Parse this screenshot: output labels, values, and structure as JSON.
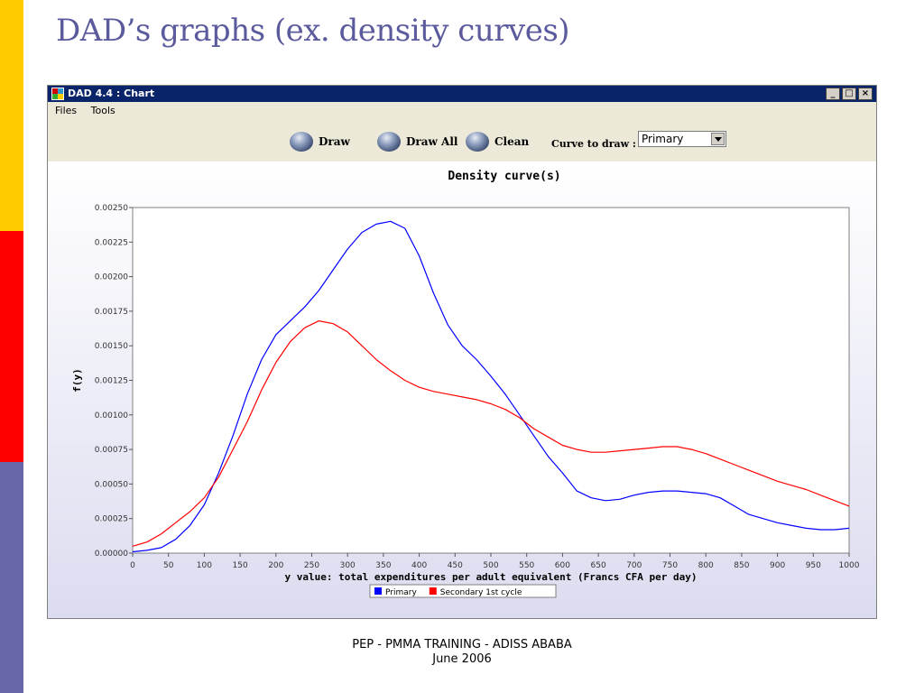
{
  "slide": {
    "title": "DAD’s graphs  (ex. density curves)",
    "footer_line1": "PEP - PMMA TRAINING - ADISS ABABA",
    "footer_line2": "June 2006"
  },
  "window": {
    "title": "DAD 4.4 : Chart",
    "minimize": "_",
    "maximize": "□",
    "close": "×"
  },
  "menu": {
    "files": "Files",
    "tools": "Tools"
  },
  "toolbar": {
    "draw": "Draw",
    "draw_all": "Draw All",
    "clean": "Clean",
    "curve_label": "Curve to draw :",
    "curve_selected": "Primary"
  },
  "chart_data": {
    "type": "line",
    "title": "Density curve(s)",
    "xlabel": "y value: total expenditures per adult equivalent  (Francs CFA per day)",
    "ylabel": "f(y)",
    "xlim": [
      0,
      1000
    ],
    "ylim": [
      0,
      0.0025
    ],
    "xticks": [
      0,
      50,
      100,
      150,
      200,
      250,
      300,
      350,
      400,
      450,
      500,
      550,
      600,
      650,
      700,
      750,
      800,
      850,
      900,
      950,
      1000
    ],
    "yticks": [
      "0.00000",
      "0.00025",
      "0.00050",
      "0.00075",
      "0.00100",
      "0.00125",
      "0.00150",
      "0.00175",
      "0.00200",
      "0.00225",
      "0.00250"
    ],
    "grid": false,
    "legend_position": "bottom-center",
    "series": [
      {
        "name": "Primary",
        "color": "#0000ff",
        "points": [
          [
            0,
            1e-05
          ],
          [
            20,
            2e-05
          ],
          [
            40,
            4e-05
          ],
          [
            60,
            0.0001
          ],
          [
            80,
            0.0002
          ],
          [
            100,
            0.00035
          ],
          [
            120,
            0.00058
          ],
          [
            140,
            0.00085
          ],
          [
            160,
            0.00115
          ],
          [
            180,
            0.0014
          ],
          [
            200,
            0.00158
          ],
          [
            220,
            0.00168
          ],
          [
            240,
            0.00178
          ],
          [
            260,
            0.0019
          ],
          [
            280,
            0.00205
          ],
          [
            300,
            0.0022
          ],
          [
            320,
            0.00232
          ],
          [
            340,
            0.00238
          ],
          [
            360,
            0.0024
          ],
          [
            380,
            0.00235
          ],
          [
            400,
            0.00215
          ],
          [
            420,
            0.00188
          ],
          [
            440,
            0.00165
          ],
          [
            460,
            0.0015
          ],
          [
            480,
            0.0014
          ],
          [
            500,
            0.00128
          ],
          [
            520,
            0.00115
          ],
          [
            540,
            0.001
          ],
          [
            560,
            0.00085
          ],
          [
            580,
            0.0007
          ],
          [
            600,
            0.00058
          ],
          [
            620,
            0.00045
          ],
          [
            640,
            0.0004
          ],
          [
            660,
            0.00038
          ],
          [
            680,
            0.00039
          ],
          [
            700,
            0.00042
          ],
          [
            720,
            0.00044
          ],
          [
            740,
            0.00045
          ],
          [
            760,
            0.00045
          ],
          [
            780,
            0.00044
          ],
          [
            800,
            0.00043
          ],
          [
            820,
            0.0004
          ],
          [
            840,
            0.00034
          ],
          [
            860,
            0.00028
          ],
          [
            880,
            0.00025
          ],
          [
            900,
            0.00022
          ],
          [
            920,
            0.0002
          ],
          [
            940,
            0.00018
          ],
          [
            960,
            0.00017
          ],
          [
            980,
            0.00017
          ],
          [
            1000,
            0.00018
          ]
        ]
      },
      {
        "name": "Secondary 1st cycle",
        "color": "#ff0000",
        "points": [
          [
            0,
            5e-05
          ],
          [
            20,
            8e-05
          ],
          [
            40,
            0.00014
          ],
          [
            60,
            0.00022
          ],
          [
            80,
            0.0003
          ],
          [
            100,
            0.0004
          ],
          [
            120,
            0.00055
          ],
          [
            140,
            0.00075
          ],
          [
            160,
            0.00095
          ],
          [
            180,
            0.00118
          ],
          [
            200,
            0.00138
          ],
          [
            220,
            0.00153
          ],
          [
            240,
            0.00163
          ],
          [
            260,
            0.00168
          ],
          [
            280,
            0.00166
          ],
          [
            300,
            0.0016
          ],
          [
            320,
            0.0015
          ],
          [
            340,
            0.0014
          ],
          [
            360,
            0.00132
          ],
          [
            380,
            0.00125
          ],
          [
            400,
            0.0012
          ],
          [
            420,
            0.00117
          ],
          [
            440,
            0.00115
          ],
          [
            460,
            0.00113
          ],
          [
            480,
            0.00111
          ],
          [
            500,
            0.00108
          ],
          [
            520,
            0.00104
          ],
          [
            540,
            0.00098
          ],
          [
            560,
            0.0009
          ],
          [
            580,
            0.00084
          ],
          [
            600,
            0.00078
          ],
          [
            620,
            0.00075
          ],
          [
            640,
            0.00073
          ],
          [
            660,
            0.00073
          ],
          [
            680,
            0.00074
          ],
          [
            700,
            0.00075
          ],
          [
            720,
            0.00076
          ],
          [
            740,
            0.00077
          ],
          [
            760,
            0.00077
          ],
          [
            780,
            0.00075
          ],
          [
            800,
            0.00072
          ],
          [
            820,
            0.00068
          ],
          [
            840,
            0.00064
          ],
          [
            860,
            0.0006
          ],
          [
            880,
            0.00056
          ],
          [
            900,
            0.00052
          ],
          [
            920,
            0.00049
          ],
          [
            940,
            0.00046
          ],
          [
            960,
            0.00042
          ],
          [
            980,
            0.00038
          ],
          [
            1000,
            0.00034
          ]
        ]
      }
    ]
  }
}
